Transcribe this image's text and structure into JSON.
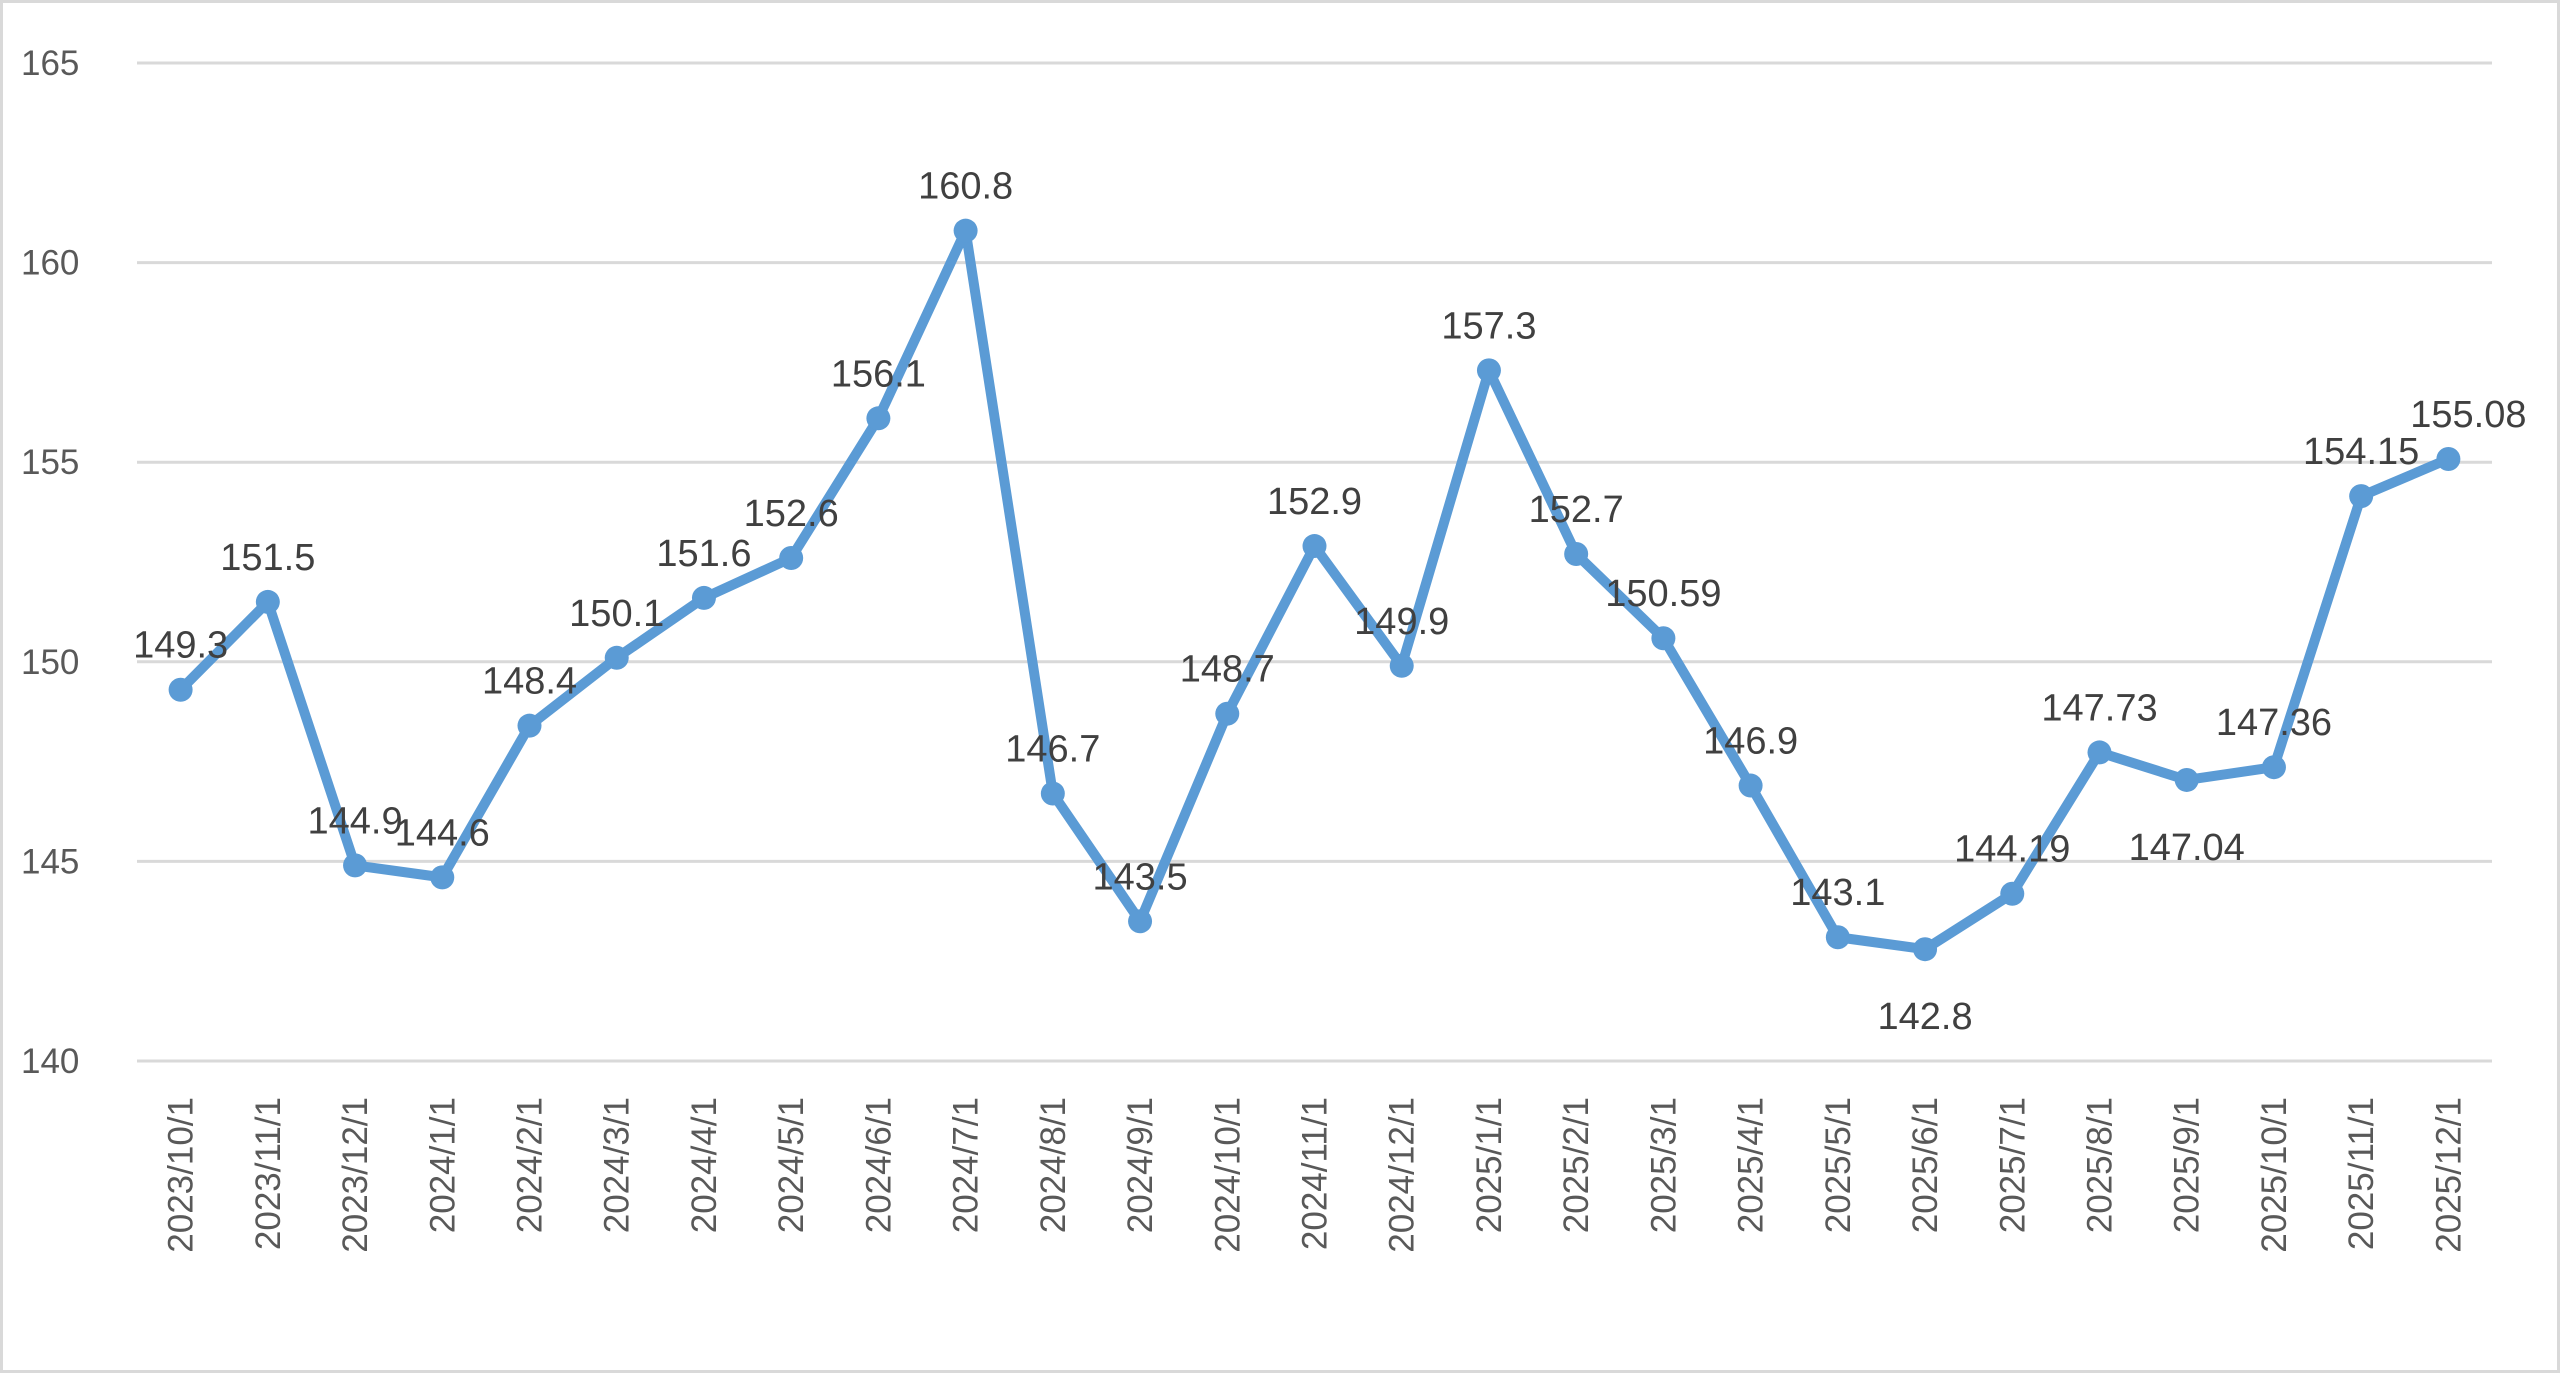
{
  "chart_data": {
    "type": "line",
    "title": "",
    "xlabel": "",
    "ylabel": "",
    "ylim": [
      140,
      165
    ],
    "yticks": [
      140,
      145,
      150,
      155,
      160,
      165
    ],
    "grid": true,
    "legend": "none",
    "color": "#5B9BD5",
    "categories": [
      "2023/10/1",
      "2023/11/1",
      "2023/12/1",
      "2024/1/1",
      "2024/2/1",
      "2024/3/1",
      "2024/4/1",
      "2024/5/1",
      "2024/6/1",
      "2024/7/1",
      "2024/8/1",
      "2024/9/1",
      "2024/10/1",
      "2024/11/1",
      "2024/12/1",
      "2025/1/1",
      "2025/2/1",
      "2025/3/1",
      "2025/4/1",
      "2025/5/1",
      "2025/6/1",
      "2025/7/1",
      "2025/8/1",
      "2025/9/1",
      "2025/10/1",
      "2025/11/1",
      "2025/12/1"
    ],
    "values": [
      149.3,
      151.5,
      144.9,
      144.6,
      148.4,
      150.1,
      151.6,
      152.6,
      156.1,
      160.8,
      146.7,
      143.5,
      148.7,
      152.9,
      149.9,
      157.3,
      152.7,
      150.59,
      146.9,
      143.1,
      142.8,
      144.19,
      147.73,
      147.04,
      147.36,
      154.15,
      155.08
    ],
    "data_labels": [
      "149.3",
      "151.5",
      "144.9",
      "144.6",
      "148.4",
      "150.1",
      "151.6",
      "152.6",
      "156.1",
      "160.8",
      "146.7",
      "143.5",
      "148.7",
      "152.9",
      "149.9",
      "157.3",
      "152.7",
      "150.59",
      "146.9",
      "143.1",
      "142.8",
      "144.19",
      "147.73",
      "147.04",
      "147.36",
      "154.15",
      "155.08"
    ]
  }
}
